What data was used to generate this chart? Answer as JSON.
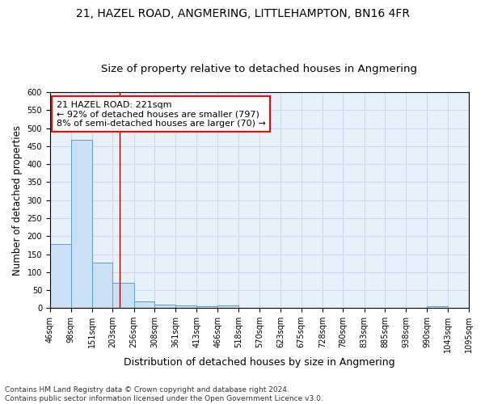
{
  "title1": "21, HAZEL ROAD, ANGMERING, LITTLEHAMPTON, BN16 4FR",
  "title2": "Size of property relative to detached houses in Angmering",
  "xlabel": "Distribution of detached houses by size in Angmering",
  "ylabel": "Number of detached properties",
  "bin_edges": [
    46,
    98,
    151,
    203,
    256,
    308,
    361,
    413,
    466,
    518,
    570,
    623,
    675,
    728,
    780,
    833,
    885,
    938,
    990,
    1043,
    1095
  ],
  "bar_heights": [
    178,
    467,
    127,
    70,
    18,
    10,
    7,
    5,
    7,
    0,
    0,
    0,
    0,
    0,
    0,
    0,
    0,
    0,
    6,
    0
  ],
  "bar_color": "#cce0f5",
  "bar_edge_color": "#5b9bd5",
  "property_value": 221,
  "annotation_title": "21 HAZEL ROAD: 221sqm",
  "annotation_line1": "← 92% of detached houses are smaller (797)",
  "annotation_line2": "8% of semi-detached houses are larger (70) →",
  "vline_color": "#aa0000",
  "ylim": [
    0,
    600
  ],
  "yticks": [
    0,
    50,
    100,
    150,
    200,
    250,
    300,
    350,
    400,
    450,
    500,
    550,
    600
  ],
  "background_color": "#e8f0fa",
  "footer_line1": "Contains HM Land Registry data © Crown copyright and database right 2024.",
  "footer_line2": "Contains public sector information licensed under the Open Government Licence v3.0.",
  "title1_fontsize": 10,
  "title2_fontsize": 9.5,
  "xlabel_fontsize": 9,
  "ylabel_fontsize": 8.5,
  "annotation_fontsize": 8,
  "tick_fontsize": 7,
  "footer_fontsize": 6.5,
  "grid_color": "#c8d8ee"
}
